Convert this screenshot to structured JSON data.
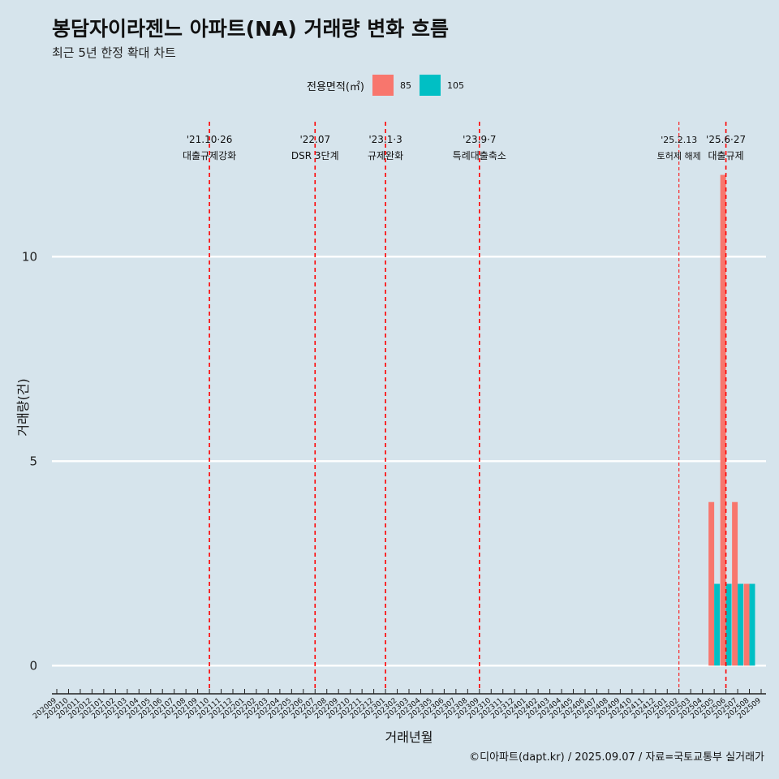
{
  "header": {
    "title": "봉담자이라젠느 아파트(NA) 거래량 변화 흐름",
    "subtitle": "최근 5년 한정 확대 차트"
  },
  "legend": {
    "title": "전용면적(㎡)",
    "items": [
      {
        "label": "85",
        "color": "#f8766d"
      },
      {
        "label": "105",
        "color": "#00bfc4"
      }
    ]
  },
  "caption": "©디아파트(dapt.kr) / 2025.09.07 / 자료=국토교통부 실거래가",
  "chart_data": {
    "type": "bar",
    "xlabel": "거래년월",
    "ylabel": "거래량(건)",
    "ylim": [
      -0.55,
      13.3
    ],
    "yticks": [
      0,
      5,
      10
    ],
    "categories": [
      "202009",
      "202010",
      "202011",
      "202012",
      "202101",
      "202102",
      "202103",
      "202104",
      "202105",
      "202106",
      "202107",
      "202108",
      "202109",
      "202110",
      "202111",
      "202112",
      "202201",
      "202202",
      "202203",
      "202204",
      "202205",
      "202206",
      "202207",
      "202208",
      "202209",
      "202210",
      "202211",
      "202212",
      "202301",
      "202302",
      "202303",
      "202304",
      "202305",
      "202306",
      "202307",
      "202308",
      "202309",
      "202310",
      "202311",
      "202312",
      "202401",
      "202402",
      "202403",
      "202404",
      "202405",
      "202406",
      "202407",
      "202408",
      "202409",
      "202410",
      "202411",
      "202412",
      "202501",
      "202502",
      "202503",
      "202504",
      "202505",
      "202506",
      "202507",
      "202508",
      "202509"
    ],
    "series": [
      {
        "name": "85",
        "color": "#f8766d",
        "values": {
          "202505": 4,
          "202506": 12,
          "202507": 4,
          "202508": 2
        }
      },
      {
        "name": "105",
        "color": "#00bfc4",
        "values": {
          "202505": 2,
          "202506": 2,
          "202507": 2,
          "202508": 2
        }
      }
    ],
    "events": [
      {
        "pos": 13.0,
        "date": "'21.10·26",
        "label": "대출규제강화",
        "style": "bold"
      },
      {
        "pos": 22.0,
        "date": "'22.07",
        "label": "DSR 3단계",
        "style": "bold"
      },
      {
        "pos": 28.0,
        "date": "'23.1·3",
        "label": "규제완화",
        "style": "bold"
      },
      {
        "pos": 36.0,
        "date": "'23.9·7",
        "label": "특례대출축소",
        "style": "bold"
      },
      {
        "pos": 53.0,
        "date": "'25.2.13",
        "label": "토허제 해제",
        "style": "thin"
      },
      {
        "pos": 57.0,
        "date": "'25.6·27",
        "label": "대출규제",
        "style": "bold"
      }
    ]
  }
}
